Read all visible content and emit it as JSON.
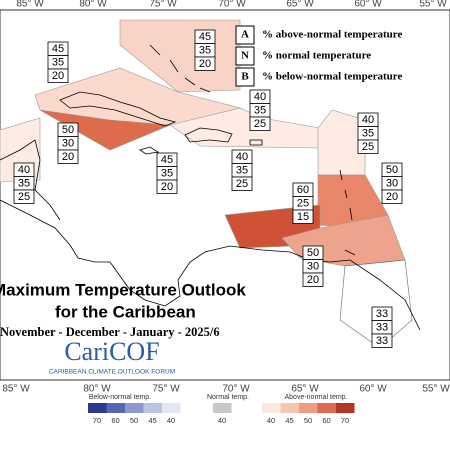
{
  "axes": {
    "top": [
      "85° W",
      "80° W",
      "75° W",
      "70° W",
      "65° W",
      "60° W",
      "55° W"
    ],
    "bottom": [
      "85° W",
      "80° W",
      "75° W",
      "70° W",
      "65° W",
      "60° W",
      "55° W"
    ]
  },
  "legend": [
    {
      "key": "A",
      "text": "% above-normal temperature"
    },
    {
      "key": "N",
      "text": "% normal temperature"
    },
    {
      "key": "B",
      "text": "% below-normal temperature"
    }
  ],
  "boxes": [
    [
      45,
      35,
      20
    ],
    [
      45,
      35,
      20
    ],
    [
      40,
      35,
      25
    ],
    [
      50,
      30,
      20
    ],
    [
      45,
      35,
      20
    ],
    [
      40,
      35,
      25
    ],
    [
      40,
      35,
      25
    ],
    [
      40,
      35,
      25
    ],
    [
      60,
      25,
      15
    ],
    [
      50,
      30,
      20
    ],
    [
      50,
      30,
      20
    ],
    [
      33,
      33,
      33
    ]
  ],
  "title": {
    "lines": [
      "Maximum Temperature Outlook",
      "for the Caribbean"
    ],
    "period": "November - December - January - 2025/6"
  },
  "logo": {
    "name": "CariCOF",
    "tagline": "CARIBBEAN CLIMATE OUTLOOK FORUM"
  },
  "colorbar": {
    "below": {
      "label": "Below-normal temp.",
      "ticks": [
        70,
        60,
        50,
        45,
        40
      ]
    },
    "normal": {
      "label": "Normal temp.",
      "ticks": [
        40
      ]
    },
    "above": {
      "label": "Above-normal temp.",
      "ticks": [
        40,
        45,
        50,
        60,
        70
      ]
    }
  }
}
